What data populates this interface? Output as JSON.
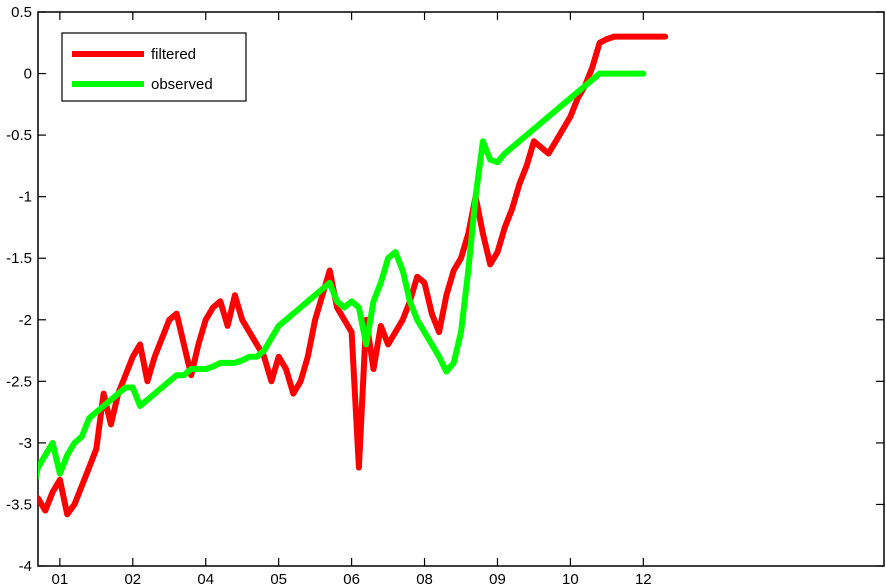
{
  "chart_data": {
    "type": "line",
    "title": "",
    "xlabel": "",
    "ylabel": "",
    "xlim": [
      2000.7,
      2012.3
    ],
    "ylim": [
      -4,
      0.5
    ],
    "grid": false,
    "legend_position": "top-left",
    "xticks": [
      {
        "value": 2001,
        "label": "01"
      },
      {
        "value": 2002,
        "label": "02"
      },
      {
        "value": 2003,
        "label": "04"
      },
      {
        "value": 2004,
        "label": "05"
      },
      {
        "value": 2005,
        "label": "06"
      },
      {
        "value": 2006,
        "label": "08"
      },
      {
        "value": 2007,
        "label": "09"
      },
      {
        "value": 2008,
        "label": "10"
      },
      {
        "value": 2009,
        "label": "12"
      }
    ],
    "yticks": [
      {
        "value": 0.5,
        "label": "0.5"
      },
      {
        "value": 0,
        "label": "0"
      },
      {
        "value": -0.5,
        "label": "-0.5"
      },
      {
        "value": -1,
        "label": "-1"
      },
      {
        "value": -1.5,
        "label": "-1.5"
      },
      {
        "value": -2,
        "label": "-2"
      },
      {
        "value": -2.5,
        "label": "-2.5"
      },
      {
        "value": -3,
        "label": "-3"
      },
      {
        "value": -3.5,
        "label": "-3.5"
      },
      {
        "value": -4,
        "label": "-4"
      }
    ],
    "series": [
      {
        "name": "filtered",
        "color": "#ff0000",
        "x": [
          2000.5,
          2000.6,
          2000.7,
          2000.8,
          2000.9,
          2001.0,
          2001.1,
          2001.2,
          2001.3,
          2001.4,
          2001.5,
          2001.6,
          2001.7,
          2001.8,
          2001.9,
          2002.0,
          2002.1,
          2002.2,
          2002.3,
          2002.4,
          2002.5,
          2002.6,
          2002.7,
          2002.8,
          2002.9,
          2003.0,
          2003.1,
          2003.2,
          2003.3,
          2003.4,
          2003.5,
          2003.6,
          2003.7,
          2003.8,
          2003.9,
          2004.0,
          2004.1,
          2004.2,
          2004.3,
          2004.4,
          2004.5,
          2004.6,
          2004.7,
          2004.8,
          2004.9,
          2005.0,
          2005.1,
          2005.2,
          2005.3,
          2005.4,
          2005.5,
          2005.6,
          2005.7,
          2005.8,
          2005.9,
          2006.0,
          2006.1,
          2006.2,
          2006.3,
          2006.4,
          2006.5,
          2006.6,
          2006.7,
          2006.8,
          2006.9,
          2007.0,
          2007.1,
          2007.2,
          2007.3,
          2007.4,
          2007.5,
          2007.6,
          2007.7,
          2007.8,
          2007.9,
          2008.0,
          2008.1,
          2008.2,
          2008.3,
          2008.4,
          2008.5,
          2008.6,
          2008.7,
          2008.8,
          2008.9,
          2009.0,
          2009.1,
          2009.2,
          2009.3
        ],
        "values": [
          -3.6,
          -3.5,
          -3.45,
          -3.55,
          -3.4,
          -3.3,
          -3.58,
          -3.5,
          -3.35,
          -3.2,
          -3.05,
          -2.6,
          -2.85,
          -2.6,
          -2.45,
          -2.3,
          -2.2,
          -2.5,
          -2.3,
          -2.15,
          -2.0,
          -1.95,
          -2.2,
          -2.45,
          -2.2,
          -2.0,
          -1.9,
          -1.85,
          -2.05,
          -1.8,
          -2.0,
          -2.1,
          -2.2,
          -2.3,
          -2.5,
          -2.3,
          -2.4,
          -2.6,
          -2.5,
          -2.3,
          -2.0,
          -1.8,
          -1.6,
          -1.9,
          -2.0,
          -2.1,
          -3.2,
          -2.0,
          -2.4,
          -2.05,
          -2.2,
          -2.1,
          -2.0,
          -1.85,
          -1.65,
          -1.7,
          -1.95,
          -2.1,
          -1.8,
          -1.6,
          -1.5,
          -1.3,
          -1.0,
          -1.3,
          -1.55,
          -1.45,
          -1.25,
          -1.1,
          -0.9,
          -0.75,
          -0.55,
          -0.6,
          -0.65,
          -0.55,
          -0.45,
          -0.35,
          -0.2,
          -0.1,
          0.05,
          0.25,
          0.28,
          0.3,
          0.3,
          0.3,
          0.3,
          0.3,
          0.3,
          0.3,
          0.3
        ],
        "x_trimmed_note": ""
      },
      {
        "name": "observed",
        "color": "#00ff00",
        "x": [
          2000.5,
          2000.6,
          2000.7,
          2000.8,
          2000.9,
          2001.0,
          2001.1,
          2001.2,
          2001.3,
          2001.4,
          2001.5,
          2001.6,
          2001.7,
          2001.8,
          2001.9,
          2002.0,
          2002.1,
          2002.2,
          2002.3,
          2002.4,
          2002.5,
          2002.6,
          2002.7,
          2002.8,
          2002.9,
          2003.0,
          2003.1,
          2003.2,
          2003.3,
          2003.4,
          2003.5,
          2003.6,
          2003.7,
          2003.8,
          2003.9,
          2004.0,
          2004.1,
          2004.2,
          2004.3,
          2004.4,
          2004.5,
          2004.6,
          2004.7,
          2004.8,
          2004.9,
          2005.0,
          2005.1,
          2005.2,
          2005.3,
          2005.4,
          2005.5,
          2005.6,
          2005.7,
          2005.8,
          2005.9,
          2006.0,
          2006.1,
          2006.2,
          2006.3,
          2006.4,
          2006.5,
          2006.6,
          2006.7,
          2006.8,
          2006.9,
          2007.0,
          2007.1,
          2007.2,
          2007.3,
          2007.4,
          2007.5,
          2007.6,
          2007.7,
          2007.8,
          2007.9,
          2008.0,
          2008.1,
          2008.2,
          2008.3,
          2008.4,
          2008.5,
          2008.6,
          2008.7,
          2008.8,
          2008.9,
          2009.0
        ],
        "values": [
          -3.5,
          -3.45,
          -3.2,
          -3.1,
          -3.0,
          -3.25,
          -3.1,
          -3.0,
          -2.95,
          -2.8,
          -2.75,
          -2.7,
          -2.65,
          -2.6,
          -2.55,
          -2.55,
          -2.7,
          -2.65,
          -2.6,
          -2.55,
          -2.5,
          -2.45,
          -2.45,
          -2.4,
          -2.4,
          -2.4,
          -2.38,
          -2.35,
          -2.35,
          -2.35,
          -2.33,
          -2.3,
          -2.3,
          -2.25,
          -2.15,
          -2.05,
          -2.0,
          -1.95,
          -1.9,
          -1.85,
          -1.8,
          -1.75,
          -1.7,
          -1.85,
          -1.9,
          -1.85,
          -1.9,
          -2.2,
          -1.85,
          -1.7,
          -1.5,
          -1.45,
          -1.6,
          -1.85,
          -2.0,
          -2.1,
          -2.2,
          -2.3,
          -2.42,
          -2.35,
          -2.1,
          -1.6,
          -1.0,
          -0.55,
          -0.7,
          -0.72,
          -0.65,
          -0.6,
          -0.55,
          -0.5,
          -0.45,
          -0.4,
          -0.35,
          -0.3,
          -0.25,
          -0.2,
          -0.15,
          -0.1,
          -0.05,
          0.0,
          0.0,
          0.0,
          0.0,
          0.0,
          0.0,
          0.0
        ]
      }
    ]
  }
}
